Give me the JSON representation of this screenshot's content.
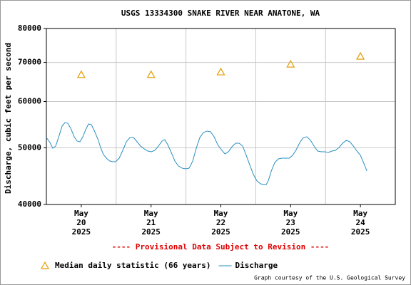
{
  "chart_data": {
    "type": "line",
    "title": "USGS 13334300 SNAKE RIVER NEAR ANATONE, WA",
    "y_label": "Discharge, cubic feet per second",
    "annotation": "---- Provisional Data Subject to Revision ----",
    "credit": "Graph courtesy of the U.S. Geological Survey",
    "xlim": [
      20,
      25
    ],
    "xticks": [
      {
        "value": 20.5,
        "label": "May 20 2025"
      },
      {
        "value": 21.5,
        "label": "May 21 2025"
      },
      {
        "value": 22.5,
        "label": "May 22 2025"
      },
      {
        "value": 23.5,
        "label": "May 23 2025"
      },
      {
        "value": 24.5,
        "label": "May 24 2025"
      }
    ],
    "x_grid_lines": [
      21,
      22,
      23,
      24
    ],
    "ylim": [
      40000,
      80000
    ],
    "yticks": [
      40000,
      50000,
      60000,
      70000,
      80000
    ],
    "y_log_scale": true,
    "grid": true,
    "series": [
      {
        "name": "Median daily statistic (66 years)",
        "color": "#e69b00",
        "marker": "triangle",
        "x": [
          20.5,
          21.5,
          22.5,
          23.5,
          24.5
        ],
        "values": [
          66700,
          66700,
          67400,
          69500,
          71700
        ]
      },
      {
        "name": "Discharge",
        "color": "#2a8fc0",
        "marker": "line",
        "x": [
          20.0,
          20.051,
          20.092,
          20.133,
          20.174,
          20.225,
          20.266,
          20.307,
          20.348,
          20.399,
          20.44,
          20.481,
          20.522,
          20.563,
          20.604,
          20.645,
          20.685,
          20.737,
          20.777,
          20.818,
          20.87,
          20.91,
          20.951,
          20.992,
          21.043,
          21.095,
          21.146,
          21.197,
          21.248,
          21.299,
          21.35,
          21.402,
          21.453,
          21.504,
          21.555,
          21.606,
          21.657,
          21.698,
          21.739,
          21.79,
          21.841,
          21.893,
          21.944,
          21.995,
          22.046,
          22.097,
          22.148,
          22.199,
          22.251,
          22.302,
          22.353,
          22.404,
          22.455,
          22.506,
          22.558,
          22.609,
          22.66,
          22.711,
          22.762,
          22.813,
          22.864,
          22.916,
          22.967,
          23.018,
          23.069,
          23.12,
          23.151,
          23.182,
          23.223,
          23.274,
          23.325,
          23.376,
          23.427,
          23.478,
          23.529,
          23.581,
          23.632,
          23.683,
          23.734,
          23.785,
          23.836,
          23.887,
          23.939,
          23.99,
          24.041,
          24.092,
          24.143,
          24.194,
          24.246,
          24.297,
          24.348,
          24.399,
          24.45,
          24.501,
          24.552,
          24.593
        ],
        "values": [
          52070,
          51060,
          49930,
          50350,
          52070,
          54460,
          55230,
          55080,
          54010,
          52220,
          51350,
          51210,
          52220,
          53710,
          54930,
          54770,
          53560,
          51780,
          50070,
          48680,
          47870,
          47470,
          47340,
          47340,
          48000,
          49510,
          51210,
          52070,
          52070,
          51210,
          50350,
          49790,
          49370,
          49230,
          49510,
          50350,
          51350,
          51640,
          50630,
          49100,
          47470,
          46540,
          46160,
          46030,
          46160,
          47470,
          49930,
          52070,
          53110,
          53410,
          53260,
          52220,
          50630,
          49650,
          48820,
          49230,
          50210,
          50920,
          50920,
          50350,
          48540,
          46680,
          45000,
          43880,
          43390,
          43270,
          43270,
          44000,
          45640,
          47200,
          47870,
          48000,
          48000,
          48000,
          48540,
          49650,
          51060,
          52070,
          52220,
          51500,
          50350,
          49370,
          49230,
          49230,
          49100,
          49370,
          49510,
          50070,
          50920,
          51500,
          51210,
          50350,
          49370,
          48540,
          46940,
          45640
        ]
      }
    ]
  }
}
